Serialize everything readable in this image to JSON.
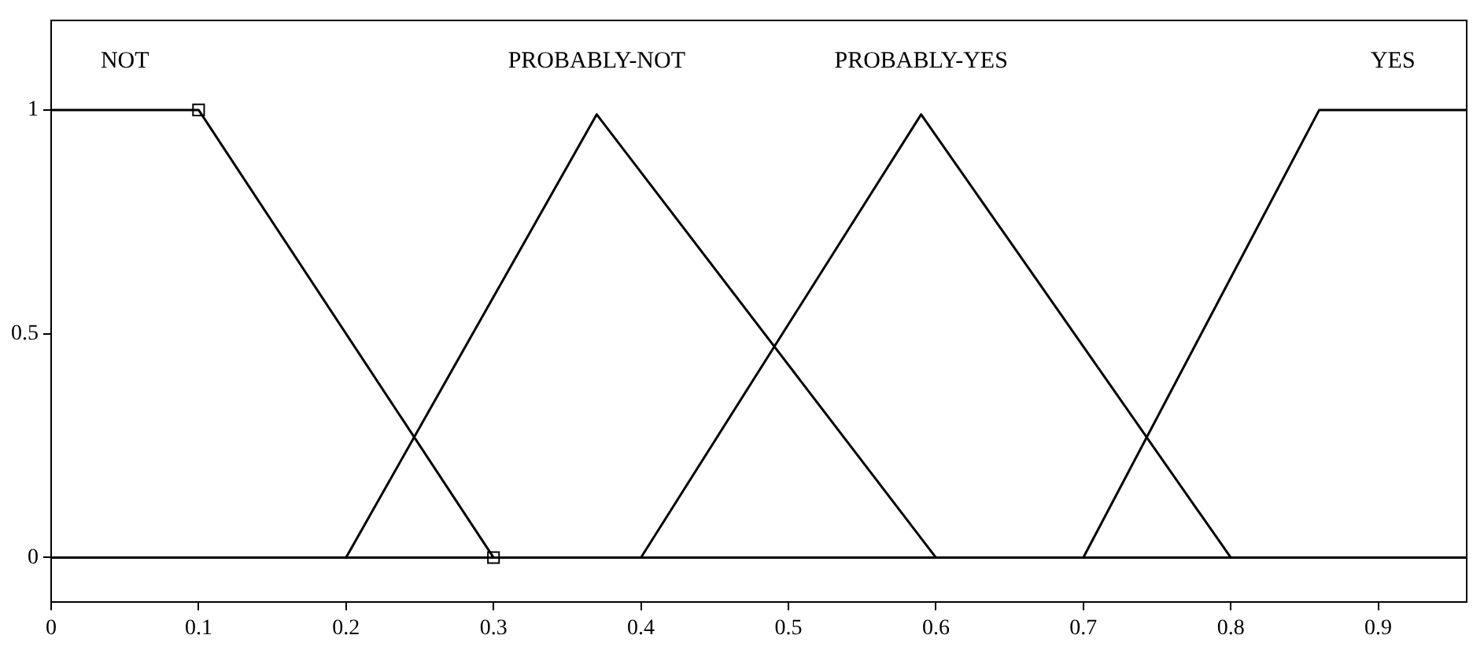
{
  "chart_data": {
    "type": "line",
    "xlim": [
      0,
      0.96
    ],
    "ylim": [
      -0.1,
      1.2
    ],
    "xticks": [
      0,
      0.1,
      0.2,
      0.3,
      0.4,
      0.5,
      0.6,
      0.7,
      0.8,
      0.9
    ],
    "yticks": [
      0,
      0.5,
      1
    ],
    "grid": false,
    "legend": false,
    "marker": "none",
    "line_style": "solid",
    "series": [
      {
        "name": "NOT",
        "color": "#000000",
        "x": [
          0,
          0.1,
          0.3,
          0.96
        ],
        "values": [
          1,
          1,
          0,
          0
        ]
      },
      {
        "name": "PROBABLY-NOT",
        "color": "#000000",
        "x": [
          0,
          0.2,
          0.37,
          0.6,
          0.96
        ],
        "values": [
          0,
          0,
          0.99,
          0,
          0
        ]
      },
      {
        "name": "PROBABLY-YES",
        "color": "#000000",
        "x": [
          0,
          0.4,
          0.59,
          0.8,
          0.96
        ],
        "values": [
          0,
          0,
          0.99,
          0,
          0
        ]
      },
      {
        "name": "YES",
        "color": "#000000",
        "x": [
          0,
          0.7,
          0.86,
          0.96
        ],
        "values": [
          0,
          0,
          1,
          1
        ]
      },
      {
        "type": "scatter",
        "marker": "square",
        "color": "#000000",
        "x": [
          0.1,
          0.3
        ],
        "values": [
          1,
          0
        ]
      }
    ]
  }
}
